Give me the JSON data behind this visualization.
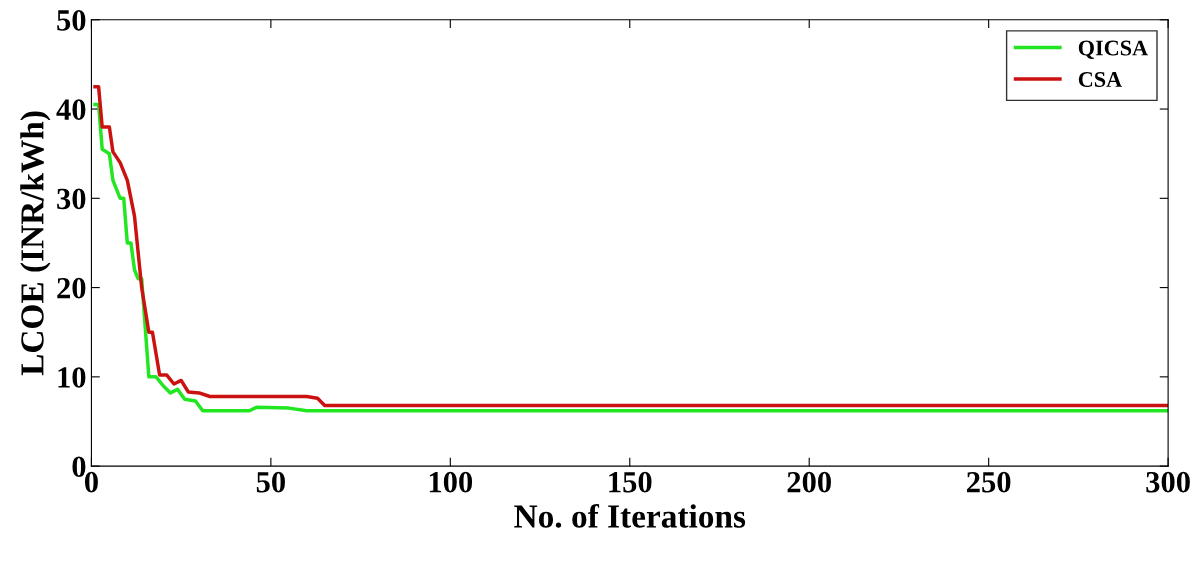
{
  "chart_data": {
    "type": "line",
    "xlabel": "No. of Iterations",
    "ylabel": "LCOE (INR/kWh)",
    "xlim": [
      0,
      300
    ],
    "xticks": [
      0,
      50,
      100,
      150,
      200,
      250,
      300
    ],
    "ylim": [
      0,
      50
    ],
    "yticks": [
      0,
      10,
      20,
      30,
      40,
      50
    ],
    "grid": false,
    "legend": "top right",
    "marker": "none",
    "line_style": "solid",
    "series": [
      {
        "name": "QICSA",
        "color": "#22e622",
        "x": [
          1,
          2,
          3,
          5,
          6,
          8,
          9,
          10,
          11,
          12,
          13,
          14,
          16,
          18,
          20,
          22,
          24,
          26,
          29,
          31,
          44,
          46,
          55,
          60,
          300
        ],
        "values": [
          40.5,
          40.5,
          35.5,
          35,
          32,
          30,
          30,
          25,
          25,
          22,
          21,
          21,
          10,
          10,
          9,
          8.2,
          8.6,
          7.5,
          7.3,
          6.2,
          6.2,
          6.6,
          6.5,
          6.2,
          6.2
        ]
      },
      {
        "name": "CSA",
        "color": "#cc1111",
        "x": [
          1,
          2,
          3,
          5,
          6,
          8,
          10,
          12,
          14,
          16,
          17,
          19,
          21,
          23,
          25,
          27,
          30,
          33,
          60,
          63,
          65,
          300
        ],
        "values": [
          42.5,
          42.5,
          38,
          38,
          35.2,
          34,
          32,
          28,
          20,
          15,
          15,
          10.2,
          10.2,
          9.2,
          9.6,
          8.3,
          8.2,
          7.8,
          7.8,
          7.6,
          6.8,
          6.8
        ]
      }
    ]
  }
}
